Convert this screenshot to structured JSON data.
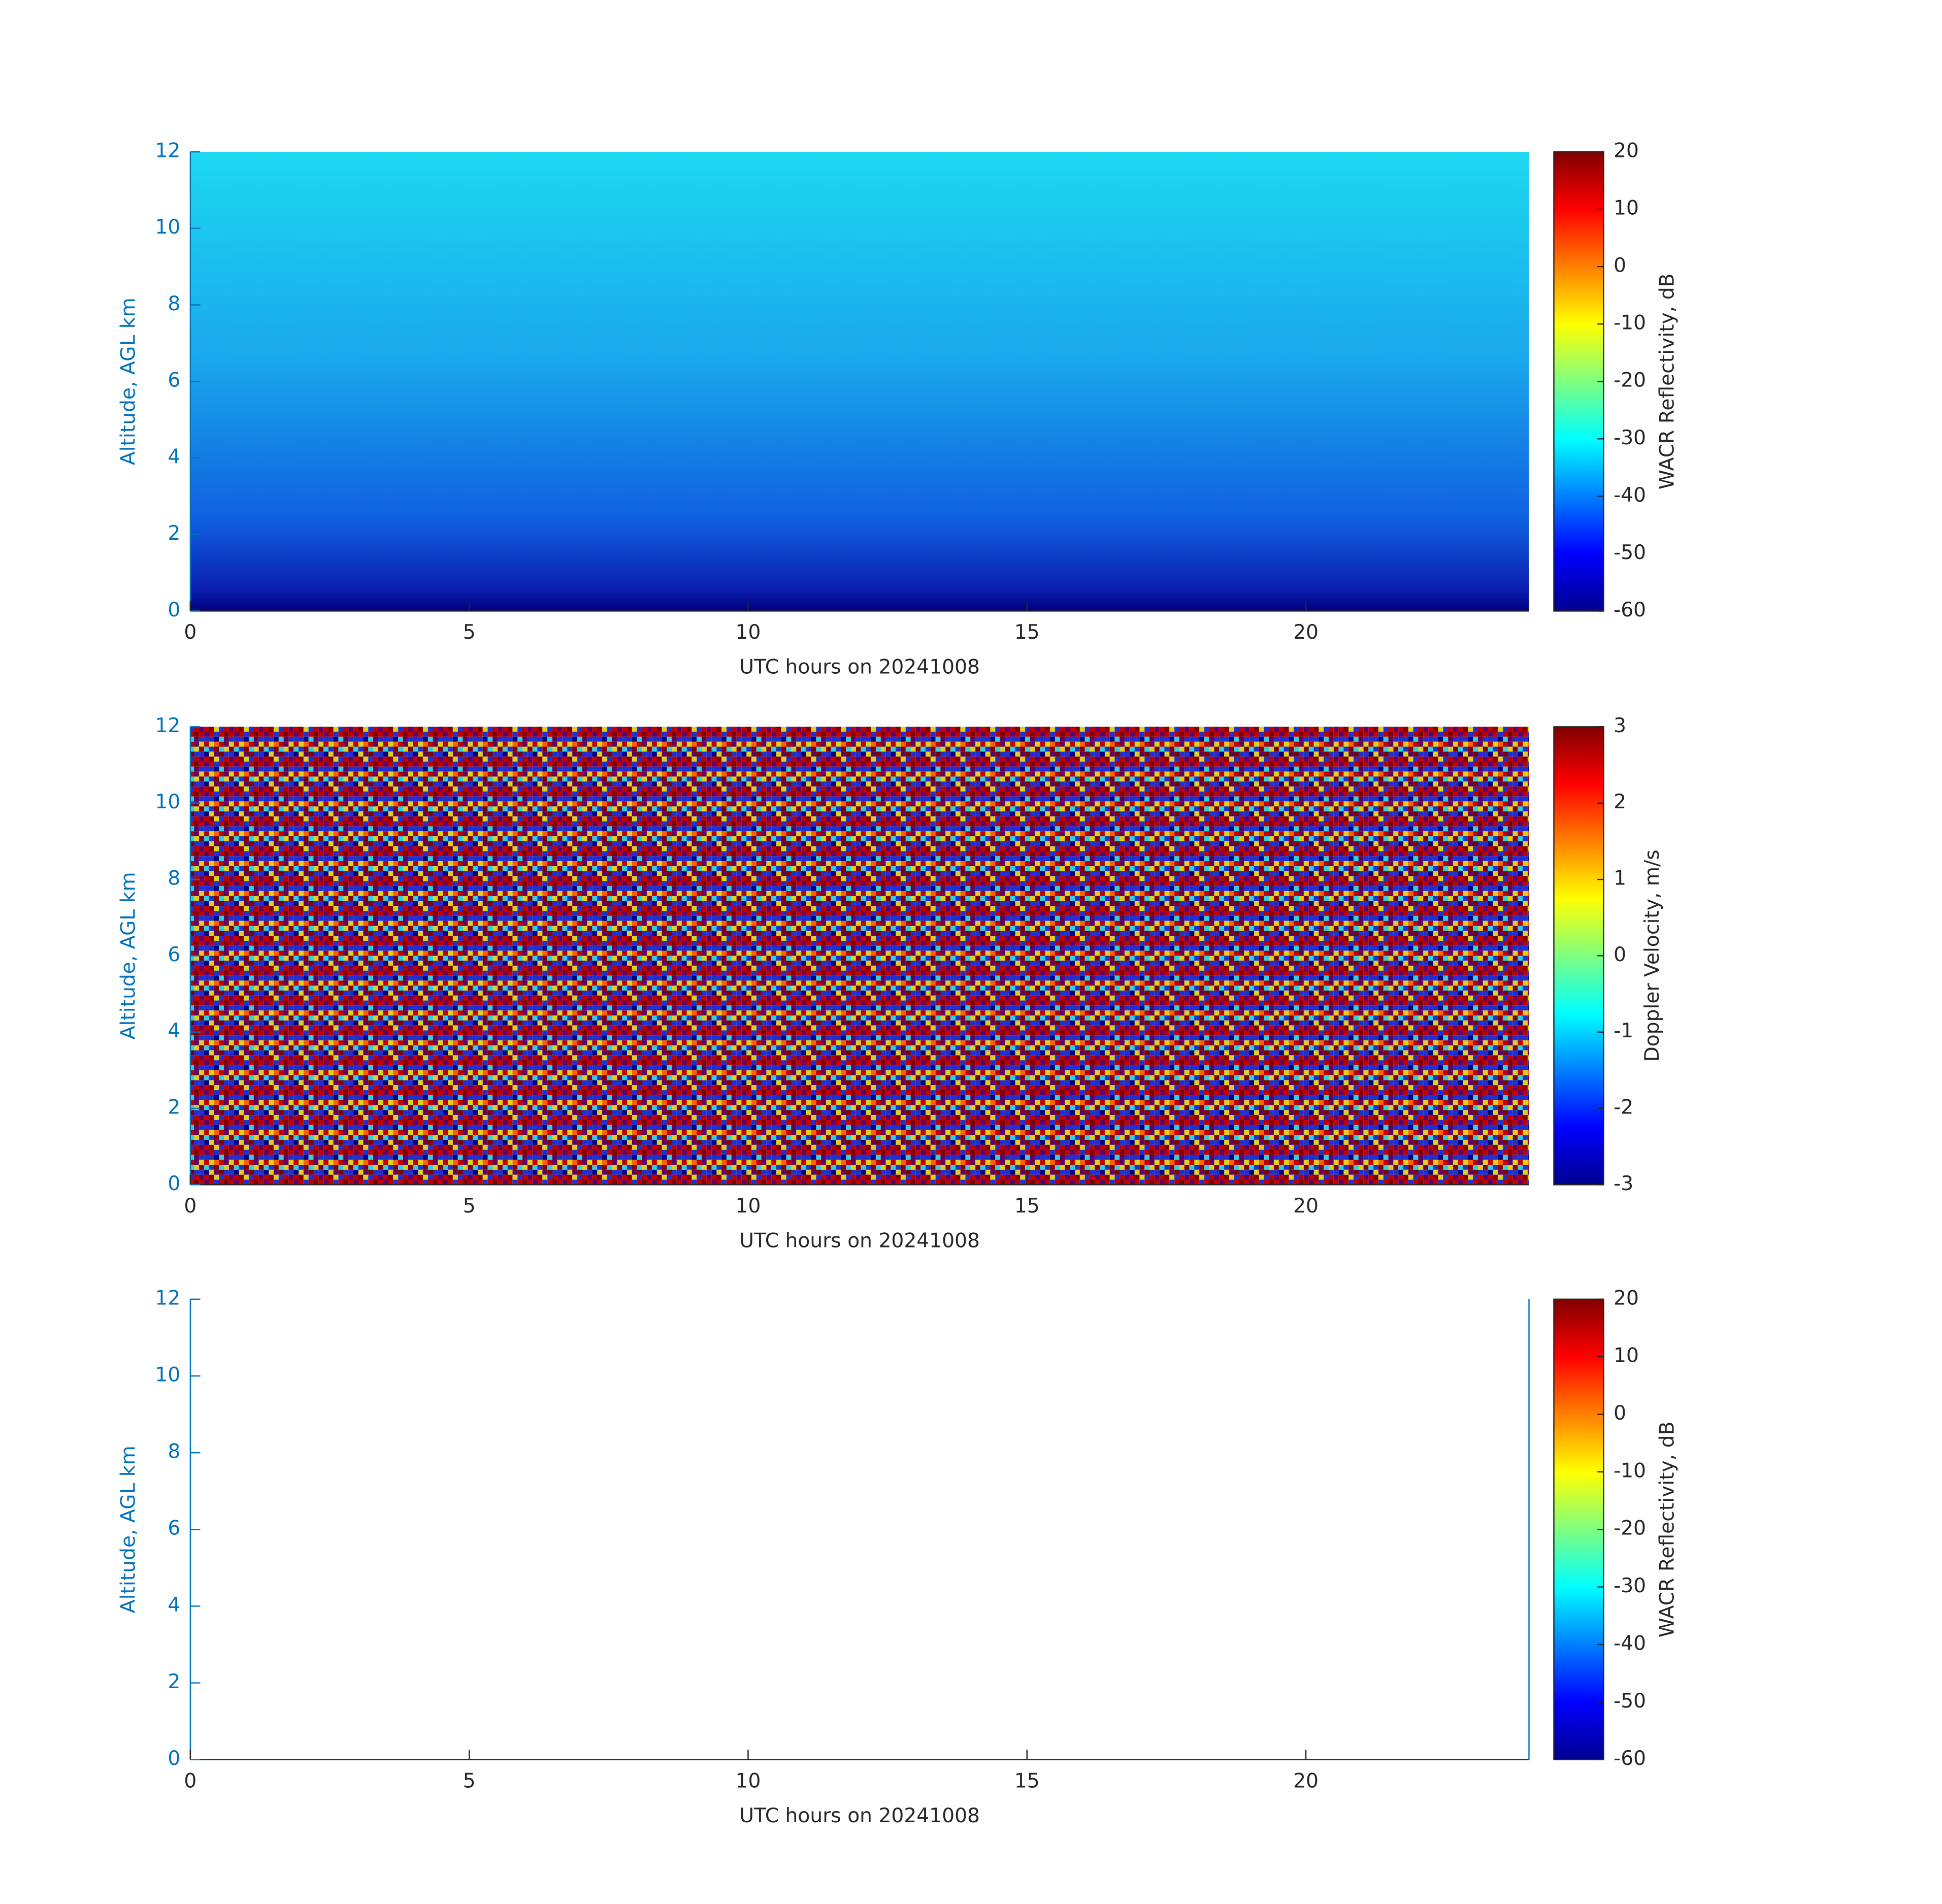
{
  "chart_data": [
    {
      "type": "heatmap",
      "xlabel": "UTC hours on 20241008",
      "ylabel": "Altitude, AGL km",
      "xlim": [
        0,
        24
      ],
      "xticks": [
        0,
        5,
        10,
        15,
        20
      ],
      "ylim": [
        0,
        12
      ],
      "yticks": [
        0,
        2,
        4,
        6,
        8,
        10,
        12
      ],
      "colormap": "jet",
      "colorbar": {
        "label": "WACR Reflectivity, dB",
        "lim": [
          -60,
          20
        ],
        "ticks": [
          -60,
          -50,
          -40,
          -30,
          -20,
          -10,
          0,
          10,
          20
        ]
      }
    },
    {
      "type": "heatmap",
      "xlabel": "UTC hours on 20241008",
      "ylabel": "Altitude, AGL km",
      "xlim": [
        0,
        24
      ],
      "xticks": [
        0,
        5,
        10,
        15,
        20
      ],
      "ylim": [
        0,
        12
      ],
      "yticks": [
        0,
        2,
        4,
        6,
        8,
        10,
        12
      ],
      "colormap": "jet",
      "colorbar": {
        "label": "Doppler Velocity, m/s",
        "lim": [
          -3,
          3
        ],
        "ticks": [
          -3,
          -2,
          -1,
          0,
          1,
          2,
          3
        ]
      }
    },
    {
      "type": "heatmap",
      "xlabel": "UTC hours on 20241008",
      "ylabel": "Altitude, AGL km",
      "xlim": [
        0,
        24
      ],
      "xticks": [
        0,
        5,
        10,
        15,
        20
      ],
      "ylim": [
        0,
        12
      ],
      "yticks": [
        0,
        2,
        4,
        6,
        8,
        10,
        12
      ],
      "colormap": "jet",
      "colorbar": {
        "label": "WACR Reflectivity, dB",
        "lim": [
          -60,
          20
        ],
        "ticks": [
          -60,
          -50,
          -40,
          -30,
          -20,
          -10,
          0,
          10,
          20
        ]
      }
    }
  ]
}
